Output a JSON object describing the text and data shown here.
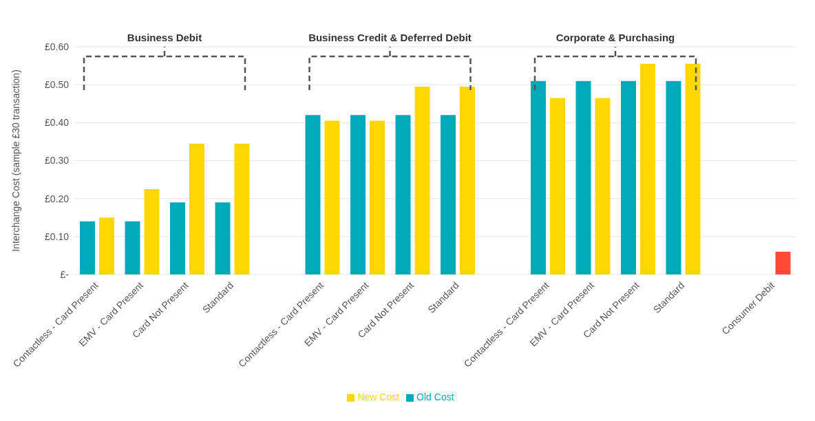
{
  "chart_data": {
    "type": "bar",
    "ylabel": "Interchange Cost (sample £30 transaction)",
    "categories": [
      "Contactless - Card Present",
      "EMV - Card Present",
      "Card Not Present",
      "Standard",
      null,
      "Contactless - Card Present",
      "EMV - Card Present",
      "Card Not Present",
      "Standard",
      null,
      "Contactless - Card Present",
      "EMV - Card Present",
      "Card Not Present",
      "Standard",
      null,
      "Consumer Debit"
    ],
    "series": [
      {
        "name": "Old Cost",
        "color": "#00aab8",
        "values": [
          0.14,
          0.14,
          0.19,
          0.19,
          null,
          0.42,
          0.42,
          0.42,
          0.42,
          null,
          0.51,
          0.51,
          0.51,
          0.51,
          null,
          null
        ]
      },
      {
        "name": "New Cost",
        "color": "#ffd700",
        "colors": [
          "#ffd700",
          "#ffd700",
          "#ffd700",
          "#ffd700",
          "#ffd700",
          "#ffd700",
          "#ffd700",
          "#ffd700",
          "#ffd700",
          "#ffd700",
          "#ffd700",
          "#ffd700",
          "#ffd700",
          "#ffd700",
          "#ffd700",
          "#ff4a35"
        ],
        "values": [
          0.15,
          0.225,
          0.345,
          0.345,
          null,
          0.405,
          0.405,
          0.495,
          0.495,
          null,
          0.465,
          0.465,
          0.555,
          0.555,
          null,
          0.06
        ]
      }
    ],
    "annotations": [
      "Business Debit",
      "Business Credit & Deferred Debit",
      "Corporate & Purchasing"
    ],
    "ylim": [
      0,
      0.6
    ],
    "yticks": [
      {
        "value": 0,
        "label": "£-"
      },
      {
        "value": 0.1,
        "label": "£0.10"
      },
      {
        "value": 0.2,
        "label": "£0.20"
      },
      {
        "value": 0.3,
        "label": "£0.30"
      },
      {
        "value": 0.4,
        "label": "£0.40"
      },
      {
        "value": 0.5,
        "label": "£0.50"
      },
      {
        "value": 0.6,
        "label": "£0.60"
      }
    ],
    "grid": "y",
    "legend": "bottom"
  }
}
